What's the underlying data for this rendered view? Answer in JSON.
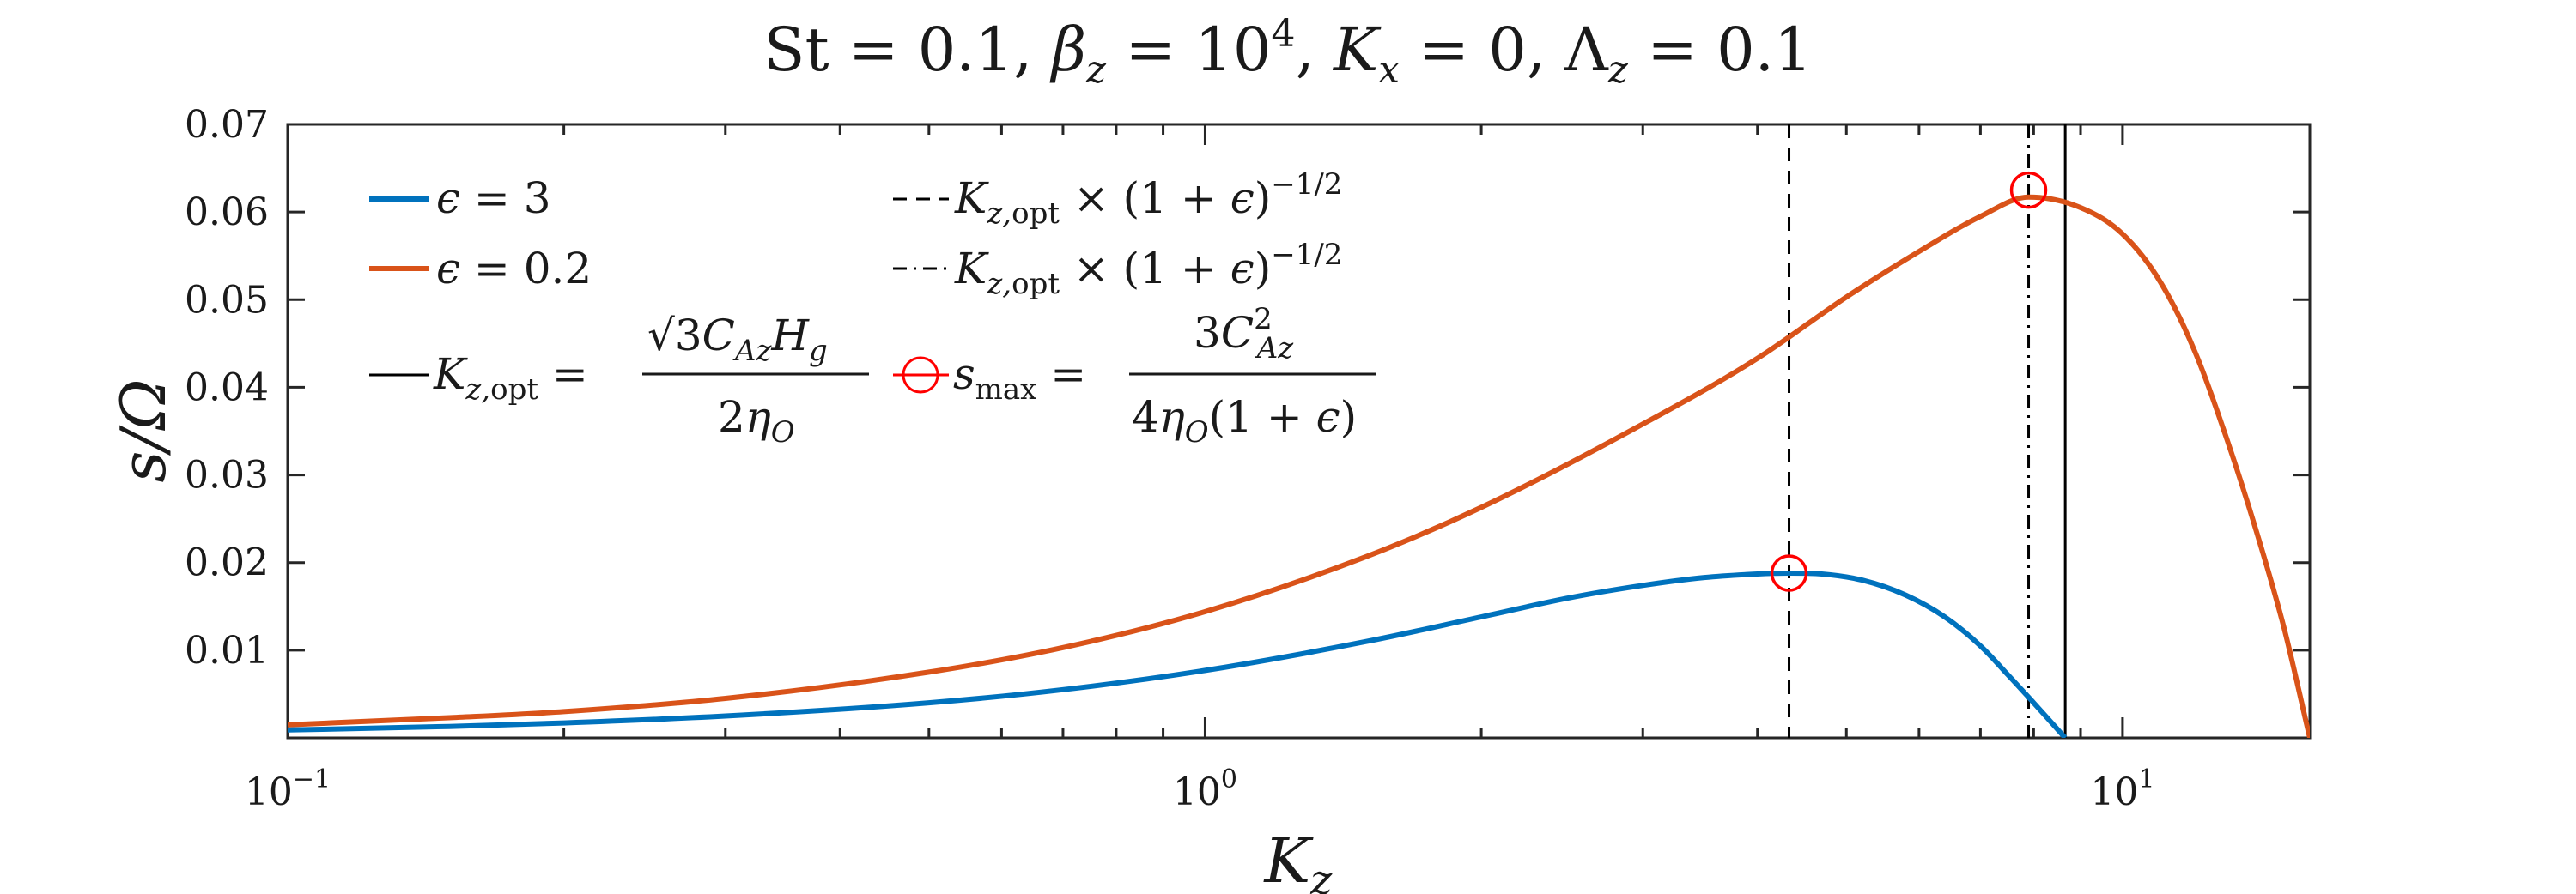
{
  "chart_data": {
    "type": "line",
    "title": "St = 0.1, βz = 10⁴, Kx = 0, Λz = 0.1",
    "xlabel": "Kz",
    "ylabel": "s/Ω",
    "xscale": "log",
    "xlim": [
      0.1,
      16
    ],
    "ylim": [
      0,
      0.07
    ],
    "x_ticks": [
      0.1,
      1,
      10
    ],
    "x_tick_labels": [
      {
        "base": "10",
        "exp": "−1"
      },
      {
        "base": "10",
        "exp": "0"
      },
      {
        "base": "10",
        "exp": "1"
      }
    ],
    "y_ticks": [
      0.01,
      0.02,
      0.03,
      0.04,
      0.05,
      0.06,
      0.07
    ],
    "y_tick_labels": [
      "0.01",
      "0.02",
      "0.03",
      "0.04",
      "0.05",
      "0.06",
      "0.07"
    ],
    "grid": false,
    "series": [
      {
        "name": "ϵ = 3",
        "color": "#0072BD",
        "x": [
          0.1,
          0.15,
          0.2,
          0.3,
          0.5,
          0.7,
          1.0,
          1.5,
          2.0,
          2.5,
          3.0,
          3.5,
          4.0,
          4.33,
          4.7,
          5.2,
          5.8,
          6.4,
          7.0,
          7.5,
          8.0,
          8.66
        ],
        "y": [
          0.0009,
          0.0013,
          0.0017,
          0.0025,
          0.004,
          0.0055,
          0.0077,
          0.011,
          0.0138,
          0.016,
          0.0174,
          0.0183,
          0.0187,
          0.0188,
          0.0187,
          0.018,
          0.0163,
          0.0138,
          0.0105,
          0.0072,
          0.004,
          0.0
        ]
      },
      {
        "name": "ϵ = 0.2",
        "color": "#D95319",
        "x": [
          0.1,
          0.15,
          0.2,
          0.3,
          0.5,
          0.7,
          1.0,
          1.5,
          2.0,
          3.0,
          4.0,
          5.0,
          6.0,
          7.0,
          7.9,
          9.0,
          10.0,
          11.0,
          12.0,
          13.0,
          14.0,
          15.0,
          16.0
        ],
        "y": [
          0.0015,
          0.0023,
          0.003,
          0.0045,
          0.0075,
          0.0103,
          0.0144,
          0.0207,
          0.0263,
          0.0358,
          0.0433,
          0.0503,
          0.0555,
          0.0595,
          0.0617,
          0.0605,
          0.0575,
          0.052,
          0.044,
          0.034,
          0.0235,
          0.0125,
          0.0
        ]
      }
    ],
    "vertical_lines": [
      {
        "x": 4.33,
        "style": "dashed",
        "color": "#000000"
      },
      {
        "x": 7.9,
        "style": "dashdot",
        "color": "#000000"
      },
      {
        "x": 8.66,
        "style": "solid",
        "color": "#000000"
      }
    ],
    "markers": [
      {
        "x": 4.33,
        "y": 0.0188,
        "shape": "circle",
        "color": "#FF0000"
      },
      {
        "x": 7.9,
        "y": 0.0625,
        "shape": "circle",
        "color": "#FF0000"
      }
    ],
    "legend": {
      "placement": "top-left",
      "entries": [
        {
          "kind": "line",
          "color": "#0072BD",
          "style": "solid",
          "label": "ϵ = 3"
        },
        {
          "kind": "line",
          "color": "#D95319",
          "style": "solid",
          "label": "ϵ = 0.2"
        },
        {
          "kind": "line",
          "color": "#000000",
          "style": "solid",
          "label": "Kz,opt = √3 CAz Hg / 2ηO"
        },
        {
          "kind": "line",
          "color": "#000000",
          "style": "dashed",
          "label": "Kz,opt × (1 + ϵ)^−1/2"
        },
        {
          "kind": "line",
          "color": "#000000",
          "style": "dashdot",
          "label": "Kz,opt × (1 + ϵ)^−1/2"
        },
        {
          "kind": "marker",
          "color": "#FF0000",
          "style": "circle",
          "label": "smax = 3CAz² / 4ηO(1 + ϵ)"
        }
      ]
    }
  }
}
